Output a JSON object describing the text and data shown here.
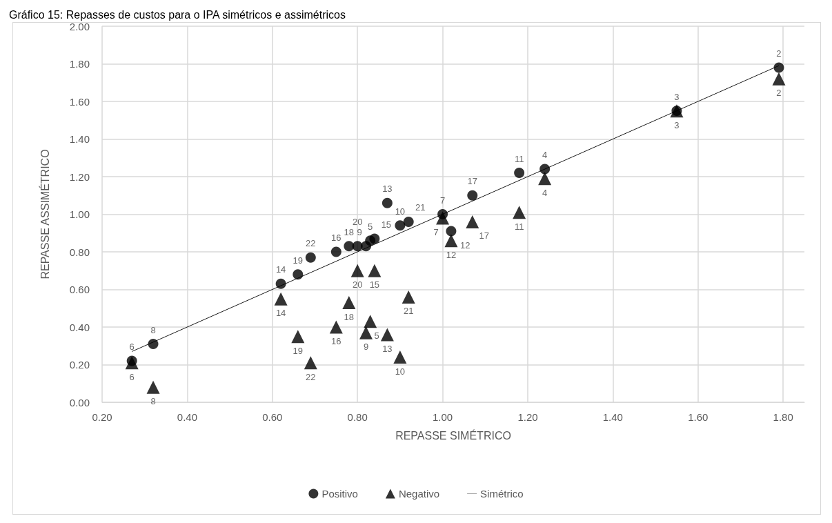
{
  "chart_data": {
    "type": "scatter",
    "title": "Gráfico 15: Repasses de custos para o IPA simétricos e assimétricos",
    "xlabel": "REPASSE SIMÉTRICO",
    "ylabel": "REPASSE ASSIMÉTRICO",
    "xlim": [
      0.2,
      1.85
    ],
    "xticks": [
      {
        "value": 0.2,
        "label": "0.20"
      },
      {
        "value": 0.4,
        "label": "0.40"
      },
      {
        "value": 0.6,
        "label": "0.60"
      },
      {
        "value": 0.8,
        "label": "0.80"
      },
      {
        "value": 1.0,
        "label": "1.00"
      },
      {
        "value": 1.2,
        "label": "1.20"
      },
      {
        "value": 1.4,
        "label": "1.40"
      },
      {
        "value": 1.6,
        "label": "1.60"
      },
      {
        "value": 1.8,
        "label": "1.80"
      }
    ],
    "ylim": [
      0,
      2
    ],
    "yticks": [
      {
        "value": 0,
        "label": "0.00"
      },
      {
        "value": 0.2,
        "label": "0.20"
      },
      {
        "value": 0.4,
        "label": "0.40"
      },
      {
        "value": 0.6,
        "label": "0.60"
      },
      {
        "value": 0.8,
        "label": "0.80"
      },
      {
        "value": 1.0,
        "label": "1.00"
      },
      {
        "value": 1.2,
        "label": "1.20"
      },
      {
        "value": 1.4,
        "label": "1.40"
      },
      {
        "value": 1.6,
        "label": "1.60"
      },
      {
        "value": 1.8,
        "label": "1.80"
      },
      {
        "value": 2.0,
        "label": "2.00"
      }
    ],
    "grid": true,
    "legend": "bottom",
    "series": [
      {
        "name": "Positivo",
        "type": "scatter",
        "marker": "circle",
        "color": "#000000",
        "x": [
          1.79,
          1.55,
          1.24,
          0.83,
          0.27,
          1.0,
          0.32,
          0.82,
          0.9,
          1.18,
          1.02,
          0.87,
          0.62,
          0.84,
          0.75,
          1.07,
          0.78,
          0.66,
          0.8,
          0.92,
          0.69
        ],
        "values": [
          1.78,
          1.55,
          1.24,
          0.86,
          0.22,
          1.0,
          0.31,
          0.83,
          0.94,
          1.22,
          0.91,
          1.06,
          0.63,
          0.87,
          0.8,
          1.1,
          0.83,
          0.68,
          0.83,
          0.96,
          0.77
        ]
      },
      {
        "name": "Negativo",
        "type": "scatter",
        "marker": "triangle",
        "color": "#000000",
        "x": [
          1.79,
          1.55,
          1.24,
          0.83,
          0.27,
          1.0,
          0.32,
          0.82,
          0.9,
          1.18,
          1.02,
          0.87,
          0.62,
          0.84,
          0.75,
          1.07,
          0.78,
          0.66,
          0.8,
          0.92,
          0.69
        ],
        "values": [
          1.72,
          1.55,
          1.19,
          0.43,
          0.21,
          0.98,
          0.08,
          0.37,
          0.24,
          1.01,
          0.86,
          0.36,
          0.55,
          0.7,
          0.4,
          0.96,
          0.53,
          0.35,
          0.7,
          0.56,
          0.21
        ]
      },
      {
        "name": "Simétrico",
        "type": "line",
        "marker": "none",
        "line_style": "solid",
        "color": "#000000",
        "x": [
          0.27,
          1.79
        ],
        "values": [
          0.27,
          1.79
        ]
      }
    ],
    "annotations": [
      {
        "text": "2",
        "x": 1.79,
        "y": 1.78
      },
      {
        "text": "3",
        "x": 1.55,
        "y": 1.55
      },
      {
        "text": "4",
        "x": 1.24,
        "y": 1.24
      },
      {
        "text": "5",
        "x": 0.83,
        "y": 0.86
      },
      {
        "text": "6",
        "x": 0.27,
        "y": 0.22
      },
      {
        "text": "7",
        "x": 1.0,
        "y": 1.0
      },
      {
        "text": "8",
        "x": 0.32,
        "y": 0.31
      },
      {
        "text": "9",
        "x": 0.82,
        "y": 0.83
      },
      {
        "text": "10",
        "x": 0.9,
        "y": 0.94
      },
      {
        "text": "11",
        "x": 1.18,
        "y": 1.22
      },
      {
        "text": "12",
        "x": 1.02,
        "y": 0.91
      },
      {
        "text": "13",
        "x": 0.87,
        "y": 1.06
      },
      {
        "text": "14",
        "x": 0.62,
        "y": 0.63
      },
      {
        "text": "15",
        "x": 0.84,
        "y": 0.87
      },
      {
        "text": "16",
        "x": 0.75,
        "y": 0.8
      },
      {
        "text": "17",
        "x": 1.07,
        "y": 1.1
      },
      {
        "text": "18",
        "x": 0.78,
        "y": 0.83
      },
      {
        "text": "19",
        "x": 0.66,
        "y": 0.68
      },
      {
        "text": "20",
        "x": 0.8,
        "y": 0.83
      },
      {
        "text": "21",
        "x": 0.92,
        "y": 0.96
      },
      {
        "text": "22",
        "x": 0.69,
        "y": 0.77
      },
      {
        "text": "2",
        "x": 1.79,
        "y": 1.72
      },
      {
        "text": "3",
        "x": 1.55,
        "y": 1.55
      },
      {
        "text": "4",
        "x": 1.24,
        "y": 1.19
      },
      {
        "text": "5",
        "x": 0.83,
        "y": 0.43
      },
      {
        "text": "6",
        "x": 0.27,
        "y": 0.21
      },
      {
        "text": "7",
        "x": 1.0,
        "y": 0.98
      },
      {
        "text": "8",
        "x": 0.32,
        "y": 0.08
      },
      {
        "text": "9",
        "x": 0.82,
        "y": 0.37
      },
      {
        "text": "10",
        "x": 0.9,
        "y": 0.24
      },
      {
        "text": "11",
        "x": 1.18,
        "y": 1.01
      },
      {
        "text": "12",
        "x": 1.02,
        "y": 0.86
      },
      {
        "text": "13",
        "x": 0.87,
        "y": 0.36
      },
      {
        "text": "14",
        "x": 0.62,
        "y": 0.55
      },
      {
        "text": "15",
        "x": 0.84,
        "y": 0.7
      },
      {
        "text": "16",
        "x": 0.75,
        "y": 0.4
      },
      {
        "text": "17",
        "x": 1.07,
        "y": 0.96
      },
      {
        "text": "18",
        "x": 0.78,
        "y": 0.53
      },
      {
        "text": "19",
        "x": 0.66,
        "y": 0.35
      },
      {
        "text": "20",
        "x": 0.8,
        "y": 0.7
      },
      {
        "text": "21",
        "x": 0.92,
        "y": 0.56
      },
      {
        "text": "22",
        "x": 0.69,
        "y": 0.21
      }
    ]
  }
}
